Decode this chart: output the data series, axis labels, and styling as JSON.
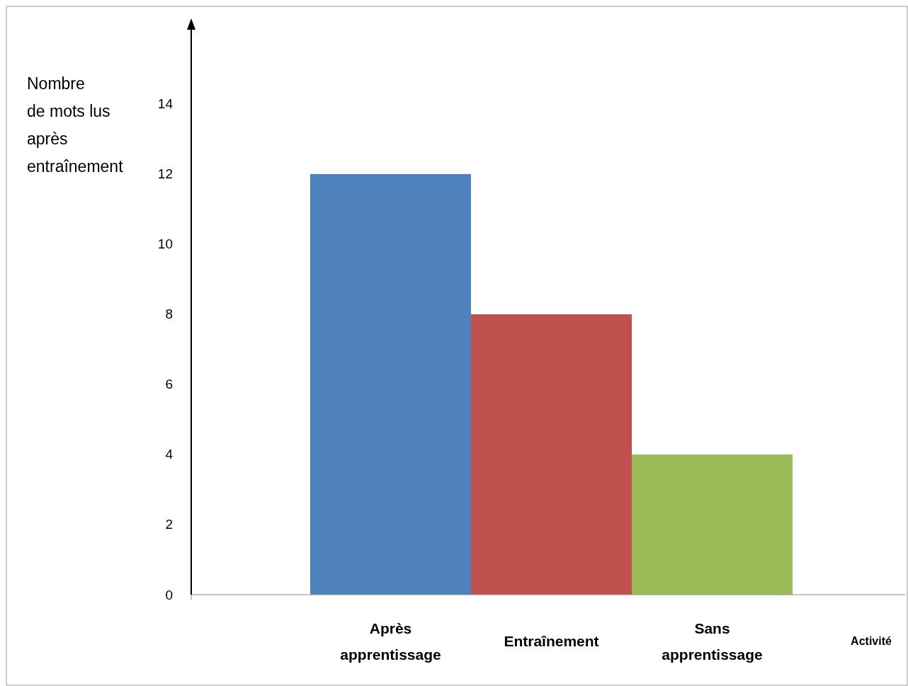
{
  "chart_data": {
    "type": "bar",
    "ylabel": "Nombre\nde mots lus\naprès\nentraînement",
    "xlabel": "Activité",
    "categories": [
      "Après apprentissage",
      "Entraînement",
      "Sans apprentissage"
    ],
    "values": [
      12,
      8,
      4
    ],
    "colors": [
      "#4f81bd",
      "#c0504d",
      "#9bbb59"
    ],
    "ylim": [
      0,
      16.4
    ],
    "yticks": [
      0,
      2,
      4,
      6,
      8,
      10,
      12,
      14
    ],
    "grid": false
  }
}
